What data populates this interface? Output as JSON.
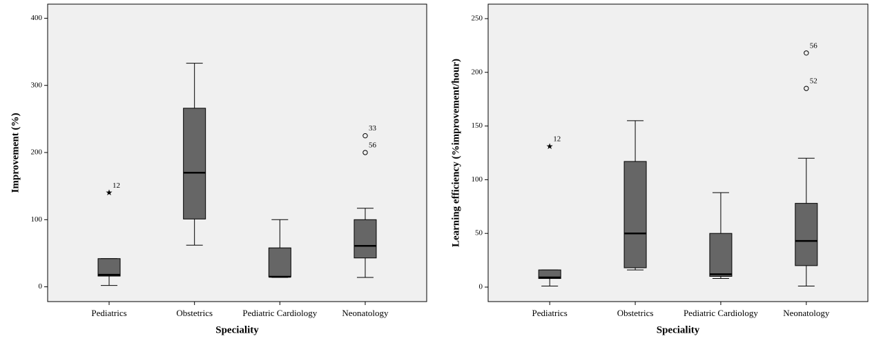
{
  "chart_data": [
    {
      "type": "box",
      "ylabel": "Improvement (%)",
      "xlabel": "Speciality",
      "box_color": "#666666",
      "background": "#f0f0f0",
      "categories": [
        "Pediatrics",
        "Obstetrics",
        "Pediatric Cardiology",
        "Neonatology"
      ],
      "boxes": [
        {
          "min": 2,
          "q1": 16,
          "median": 18,
          "q3": 42,
          "max": 42,
          "outliers": [
            {
              "value": 140,
              "label": "12",
              "marker": "star"
            }
          ]
        },
        {
          "min": 62,
          "q1": 101,
          "median": 170,
          "q3": 266,
          "max": 333,
          "outliers": []
        },
        {
          "min": 14,
          "q1": 15,
          "median": 15,
          "q3": 58,
          "max": 100,
          "outliers": []
        },
        {
          "min": 14,
          "q1": 43,
          "median": 61,
          "q3": 100,
          "max": 117,
          "outliers": [
            {
              "value": 225,
              "label": "33",
              "marker": "circle"
            },
            {
              "value": 200,
              "label": "56",
              "marker": "circle"
            }
          ]
        }
      ],
      "ylim": [
        -22,
        421
      ],
      "yticks": [
        0,
        100,
        200,
        300,
        400
      ]
    },
    {
      "type": "box",
      "ylabel": "Learning efficiency (%improvement/hour)",
      "xlabel": "Speciality",
      "box_color": "#666666",
      "background": "#f0f0f0",
      "categories": [
        "Pediatrics",
        "Obstetrics",
        "Pediatric Cardiology",
        "Neonatology"
      ],
      "boxes": [
        {
          "min": 1,
          "q1": 8,
          "median": 9,
          "q3": 16,
          "max": 16,
          "outliers": [
            {
              "value": 131,
              "label": "12",
              "marker": "star"
            }
          ]
        },
        {
          "min": 16,
          "q1": 18,
          "median": 50,
          "q3": 117,
          "max": 155,
          "outliers": []
        },
        {
          "min": 8,
          "q1": 10,
          "median": 12,
          "q3": 50,
          "max": 88,
          "outliers": []
        },
        {
          "min": 1,
          "q1": 20,
          "median": 43,
          "q3": 78,
          "max": 120,
          "outliers": [
            {
              "value": 185,
              "label": "52",
              "marker": "circle"
            },
            {
              "value": 218,
              "label": "56",
              "marker": "circle"
            }
          ]
        }
      ],
      "ylim": [
        -13.5,
        263.5
      ],
      "yticks": [
        0,
        50,
        100,
        150,
        200,
        250
      ]
    }
  ]
}
